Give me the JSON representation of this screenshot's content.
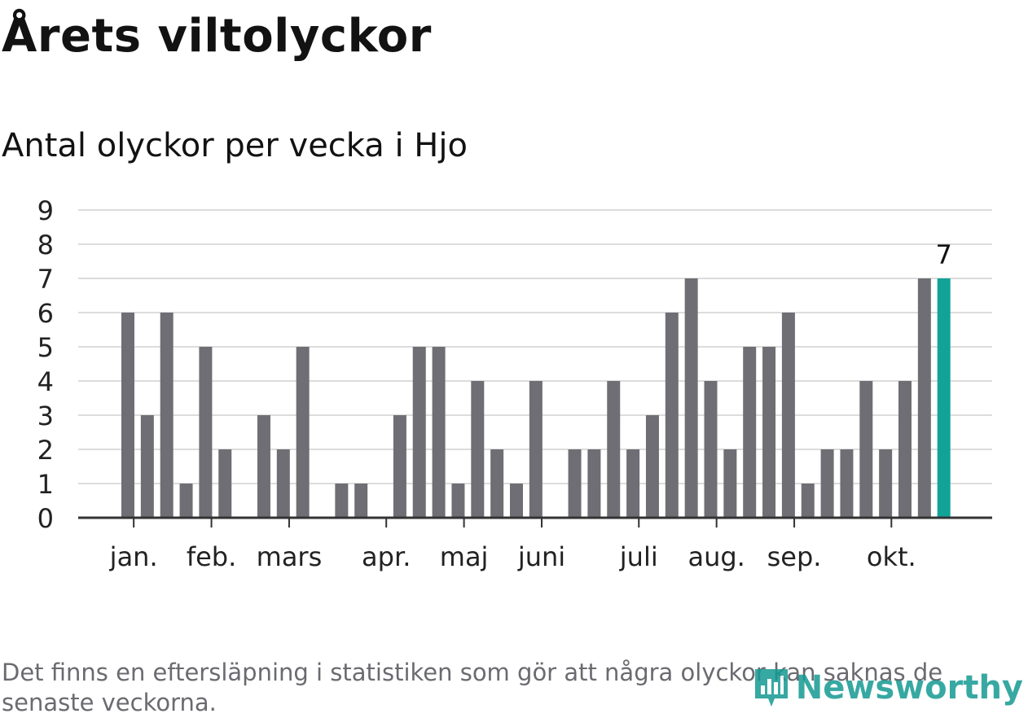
{
  "header": {
    "title": "Årets viltolyckor",
    "subtitle": "Antal olyckor per vecka i Hjo"
  },
  "footer": {
    "note": "Det finns en eftersläpning i statistiken som gör att några olyckor kan saknas de senaste veckorna.",
    "brand": "Newsworthy"
  },
  "colors": {
    "bar": "#6f6e74",
    "highlight": "#12a398",
    "grid": "#dcdcdc",
    "axis": "#333333",
    "brand": "#159a92"
  },
  "chart_data": {
    "type": "bar",
    "title": "Antal olyckor per vecka i Hjo",
    "xlabel": "",
    "ylabel": "",
    "ylim": [
      0,
      9
    ],
    "yticks": [
      "0",
      "1",
      "2",
      "3",
      "4",
      "5",
      "6",
      "7",
      "8",
      "9"
    ],
    "grid": true,
    "values": [
      6,
      3,
      6,
      1,
      5,
      2,
      0,
      3,
      2,
      5,
      0,
      1,
      1,
      0,
      3,
      5,
      5,
      1,
      4,
      2,
      1,
      4,
      0,
      2,
      2,
      4,
      2,
      3,
      6,
      7,
      4,
      2,
      5,
      5,
      6,
      1,
      2,
      2,
      4,
      2,
      4,
      7,
      7
    ],
    "highlight_last": true,
    "highlight_label": "7",
    "month_labels": [
      {
        "label": "jan.",
        "week_pos": 0.3
      },
      {
        "label": "feb.",
        "week_pos": 4.3
      },
      {
        "label": "mars",
        "week_pos": 8.3
      },
      {
        "label": "apr.",
        "week_pos": 13.3
      },
      {
        "label": "maj",
        "week_pos": 17.3
      },
      {
        "label": "juni",
        "week_pos": 21.3
      },
      {
        "label": "juli",
        "week_pos": 26.3
      },
      {
        "label": "aug.",
        "week_pos": 30.3
      },
      {
        "label": "sep.",
        "week_pos": 34.3
      },
      {
        "label": "okt.",
        "week_pos": 39.3
      }
    ]
  }
}
